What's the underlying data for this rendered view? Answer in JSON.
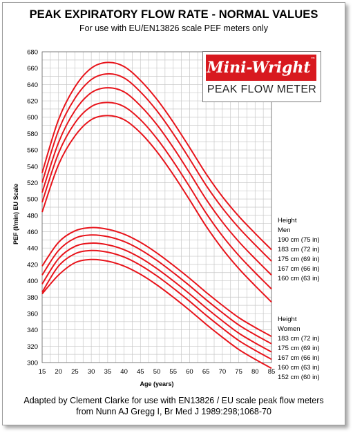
{
  "title": "PEAK EXPIRATORY FLOW RATE - NORMAL VALUES",
  "subtitle": "For use with EU/EN13826 scale PEF meters only",
  "logo": {
    "brand": "Mini-Wright",
    "product": "PEAK FLOW METER"
  },
  "footer": {
    "line1": "Adapted by Clement Clarke for use with EN13826 / EU scale peak flow meters",
    "line2": "from Nunn AJ Gregg I, Br Med J 1989:298;1068-70"
  },
  "colors": {
    "curve": "#e8141b",
    "grid": "#c8c8c8"
  },
  "chart_data": {
    "type": "line",
    "xlabel": "Age (years)",
    "ylabel": "PEF (l/min) EU Scale",
    "xlim": [
      15,
      85
    ],
    "ylim": [
      300,
      680
    ],
    "x_ticks": [
      15,
      20,
      25,
      30,
      35,
      40,
      45,
      50,
      55,
      60,
      65,
      70,
      75,
      80,
      85
    ],
    "y_ticks": [
      300,
      320,
      340,
      360,
      380,
      400,
      420,
      440,
      460,
      480,
      500,
      520,
      540,
      560,
      580,
      600,
      620,
      640,
      660,
      680
    ],
    "grid": true,
    "x": [
      15,
      20,
      25,
      30,
      35,
      40,
      45,
      50,
      55,
      60,
      65,
      70,
      75,
      80,
      85
    ],
    "groups": [
      {
        "heading": "Height",
        "label": "Men",
        "series": [
          {
            "name": "190 cm (75 in)",
            "values": [
              532,
              597,
              637,
              660,
              667,
              662,
              645,
              622,
              594,
              563,
              531,
              503,
              479,
              458,
              438
            ]
          },
          {
            "name": "183 cm (72 in)",
            "values": [
              520,
              584,
              623,
              646,
              653,
              648,
              631,
              608,
              580,
              549,
              517,
              489,
              465,
              444,
              424
            ]
          },
          {
            "name": "175 cm (69 in)",
            "values": [
              508,
              569,
              608,
              630,
              636,
              631,
              614,
              591,
              563,
              532,
              500,
              472,
              448,
              427,
              407
            ]
          },
          {
            "name": "167 cm (66 in)",
            "values": [
              496,
              556,
              593,
              613,
              618,
              613,
              597,
              574,
              546,
              515,
              483,
              455,
              431,
              410,
              390
            ]
          },
          {
            "name": "160 cm (63 in)",
            "values": [
              484,
              542,
              577,
              597,
              602,
              597,
              581,
              558,
              530,
              499,
              467,
              439,
              415,
              394,
              374
            ]
          }
        ]
      },
      {
        "heading": "Height",
        "label": "Women",
        "series": [
          {
            "name": "183 cm (72 in)",
            "values": [
              418,
              447,
              461,
              465,
              463,
              457,
              447,
              434,
              419,
              403,
              386,
              370,
              355,
              343,
              332
            ]
          },
          {
            "name": "175 cm (69 in)",
            "values": [
              407,
              437,
              452,
              456,
              454,
              448,
              438,
              425,
              410,
              394,
              377,
              361,
              346,
              334,
              323
            ]
          },
          {
            "name": "167 cm (66 in)",
            "values": [
              396,
              427,
              442,
              446,
              444,
              438,
              428,
              415,
              400,
              384,
              367,
              351,
              336,
              324,
              313
            ]
          },
          {
            "name": "160 cm (63 in)",
            "values": [
              386,
              418,
              433,
              437,
              435,
              429,
              419,
              406,
              391,
              375,
              358,
              342,
              327,
              315,
              304
            ]
          },
          {
            "name": "152 cm (60 in)",
            "values": [
              384,
              407,
              422,
              426,
              424,
              418,
              408,
              395,
              380,
              364,
              347,
              331,
              316,
              304,
              293
            ]
          }
        ]
      }
    ]
  }
}
